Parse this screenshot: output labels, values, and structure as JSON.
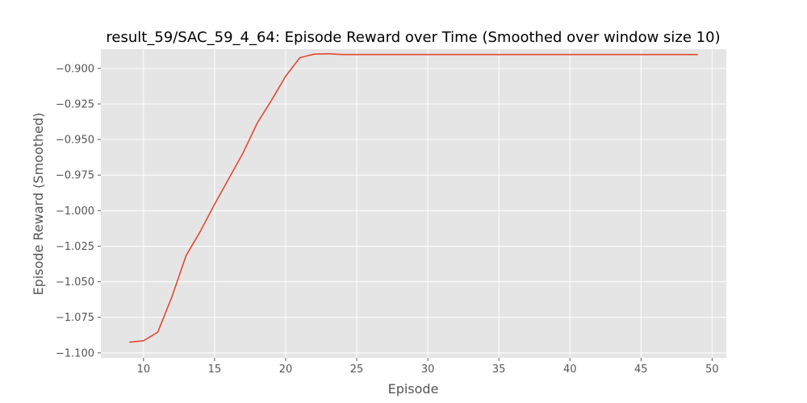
{
  "chart_data": {
    "type": "line",
    "title": "result_59/SAC_59_4_64: Episode Reward over Time (Smoothed over window size 10)",
    "xlabel": "Episode",
    "ylabel": "Episode Reward (Smoothed)",
    "xlim": [
      7.0,
      51.0
    ],
    "ylim": [
      -1.1035,
      -0.8865
    ],
    "xticks": [
      10,
      15,
      20,
      25,
      30,
      35,
      40,
      45,
      50
    ],
    "xtick_labels": [
      "10",
      "15",
      "20",
      "25",
      "30",
      "35",
      "40",
      "45",
      "50"
    ],
    "yticks": [
      -1.1,
      -1.075,
      -1.05,
      -1.025,
      -1.0,
      -0.975,
      -0.95,
      -0.925,
      -0.9
    ],
    "ytick_labels": [
      "−1.100",
      "−1.075",
      "−1.050",
      "−1.025",
      "−1.000",
      "−0.975",
      "−0.950",
      "−0.925",
      "−0.900"
    ],
    "grid": true,
    "colors": {
      "plot_background": "#e5e5e5",
      "grid": "#ffffff",
      "line": "#e24a33"
    },
    "series": [
      {
        "x": [
          9,
          10,
          11,
          12,
          13,
          14,
          15,
          16,
          17,
          18,
          19,
          20,
          21,
          22,
          23,
          24,
          25,
          26,
          27,
          28,
          29,
          30,
          31,
          32,
          33,
          34,
          35,
          36,
          37,
          38,
          39,
          40,
          41,
          42,
          43,
          44,
          45,
          46,
          47,
          48,
          49
        ],
        "values": [
          -1.0925,
          -1.0915,
          -1.0855,
          -1.0605,
          -1.0315,
          -1.0145,
          -0.9955,
          -0.9775,
          -0.9595,
          -0.9385,
          -0.9225,
          -0.9055,
          -0.8925,
          -0.89,
          -0.8897,
          -0.8903,
          -0.8903,
          -0.8903,
          -0.8903,
          -0.8903,
          -0.8903,
          -0.8903,
          -0.8903,
          -0.8903,
          -0.8903,
          -0.8903,
          -0.8903,
          -0.8903,
          -0.8903,
          -0.8903,
          -0.8903,
          -0.8903,
          -0.8903,
          -0.8903,
          -0.8903,
          -0.8903,
          -0.8903,
          -0.8903,
          -0.8903,
          -0.8903,
          -0.8903
        ]
      }
    ]
  }
}
